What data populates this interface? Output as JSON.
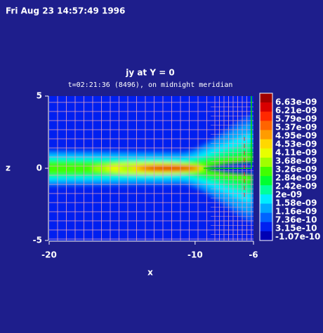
{
  "timestamp": "Fri Aug 23 14:57:49 1996",
  "chart_data": {
    "type": "heatmap",
    "title": "jy at Y = 0",
    "subtitle": "t=02:21:36 (8496), on midnight meridian",
    "xlabel": "x",
    "ylabel": "z",
    "xlim": [
      -20,
      -6
    ],
    "xticks": [
      -20,
      -10,
      -6
    ],
    "ylim": [
      -5,
      5
    ],
    "yticks": [
      5,
      0,
      -5
    ],
    "colorbar": {
      "levels": [
        {
          "value": 6.63e-09,
          "label": "6.63e-09"
        },
        {
          "value": 6.21e-09,
          "label": "6.21e-09"
        },
        {
          "value": 5.79e-09,
          "label": "5.79e-09"
        },
        {
          "value": 5.37e-09,
          "label": "5.37e-09"
        },
        {
          "value": 4.95e-09,
          "label": "4.95e-09"
        },
        {
          "value": 4.53e-09,
          "label": "4.53e-09"
        },
        {
          "value": 4.11e-09,
          "label": "4.11e-09"
        },
        {
          "value": 3.68e-09,
          "label": "3.68e-09"
        },
        {
          "value": 3.26e-09,
          "label": "3.26e-09"
        },
        {
          "value": 2.84e-09,
          "label": "2.84e-09"
        },
        {
          "value": 2.42e-09,
          "label": "2.42e-09"
        },
        {
          "value": 2e-09,
          "label": "2e-09"
        },
        {
          "value": 1.58e-09,
          "label": "1.58e-09"
        },
        {
          "value": 1.16e-09,
          "label": "1.16e-09"
        },
        {
          "value": 7.36e-10,
          "label": "7.36e-10"
        },
        {
          "value": 3.15e-10,
          "label": "3.15e-10"
        },
        {
          "value": -1.07e-10,
          "label": "-1.07e-10"
        }
      ],
      "colors": [
        "#a00000",
        "#d80000",
        "#ff2800",
        "#ff6400",
        "#ff9c00",
        "#ffd800",
        "#e8ff00",
        "#a0ff00",
        "#40ff00",
        "#00ff30",
        "#00ff9c",
        "#00ecff",
        "#00a8ff",
        "#0064ff",
        "#0020f0",
        "#0000b4"
      ]
    }
  }
}
